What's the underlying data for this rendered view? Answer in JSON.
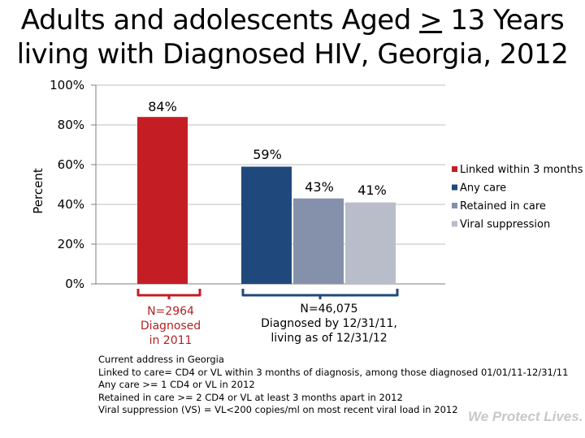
{
  "title": {
    "line1_prefix": "Adults and adolescents Aged ",
    "line1_symbol": ">",
    "line1_suffix": " 13 Years",
    "line2": "living with Diagnosed HIV, Georgia, 2012"
  },
  "chart_data": {
    "type": "bar",
    "ylabel": "Percent",
    "ylim": [
      0,
      100
    ],
    "yticks": [
      "0%",
      "20%",
      "40%",
      "60%",
      "80%",
      "100%"
    ],
    "ytick_values": [
      0,
      20,
      40,
      60,
      80,
      100
    ],
    "grid": true,
    "legend_position": "right",
    "series": [
      {
        "name": "Linked within 3 months",
        "value": 84,
        "label": "84%",
        "color": "#c41e24"
      },
      {
        "name": "Any care",
        "value": 59,
        "label": "59%",
        "color": "#1f497d"
      },
      {
        "name": "Retained in care",
        "value": 43,
        "label": "43%",
        "color": "#8591aa"
      },
      {
        "name": "Viral suppression",
        "value": 41,
        "label": "41%",
        "color": "#b9bdca"
      }
    ]
  },
  "groups": {
    "left_label": [
      "N=2964",
      "Diagnosed",
      "in 2011"
    ],
    "right_label": [
      "N=46,075",
      "Diagnosed by 12/31/11,",
      "living as of 12/31/12"
    ],
    "left_color": "#c41e24",
    "right_color": "#1f497d"
  },
  "notes": [
    "Current address in Georgia",
    "Linked  to care= CD4 or VL within 3 months of diagnosis, among those diagnosed 01/01/11-12/31/11",
    "Any care >= 1 CD4 or VL in 2012",
    "Retained in care >= 2 CD4 or VL at least 3 months apart in 2012",
    "Viral suppression (VS) = VL<200 copies/ml on most recent viral load in 2012"
  ],
  "brand": "We Protect Lives."
}
